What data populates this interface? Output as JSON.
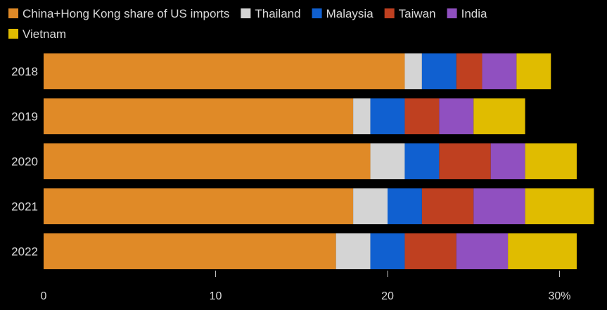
{
  "chart_data": {
    "type": "bar",
    "orientation": "horizontal",
    "stacked": true,
    "categories": [
      "2018",
      "2019",
      "2020",
      "2021",
      "2022"
    ],
    "series": [
      {
        "name": "China+Hong Kong share of US imports",
        "color": "#e08a27",
        "values": [
          21,
          18,
          19,
          18,
          17
        ]
      },
      {
        "name": "Thailand",
        "color": "#d4d4d4",
        "values": [
          1,
          1,
          2,
          2,
          2
        ]
      },
      {
        "name": "Malaysia",
        "color": "#1060d0",
        "values": [
          2,
          2,
          2,
          2,
          2
        ]
      },
      {
        "name": "Taiwan",
        "color": "#bf4020",
        "values": [
          1.5,
          2,
          3,
          3,
          3
        ]
      },
      {
        "name": "India",
        "color": "#9050c0",
        "values": [
          2,
          2,
          2,
          3,
          3
        ]
      },
      {
        "name": "Vietnam",
        "color": "#e0bc00",
        "values": [
          2,
          3,
          3,
          4,
          4
        ]
      }
    ],
    "xlim": [
      0,
      32
    ],
    "xticks": [
      0,
      10,
      20,
      30
    ],
    "xtick_labels": [
      "0",
      "10",
      "20",
      "30%"
    ],
    "grid": false,
    "legend_position": "top"
  }
}
